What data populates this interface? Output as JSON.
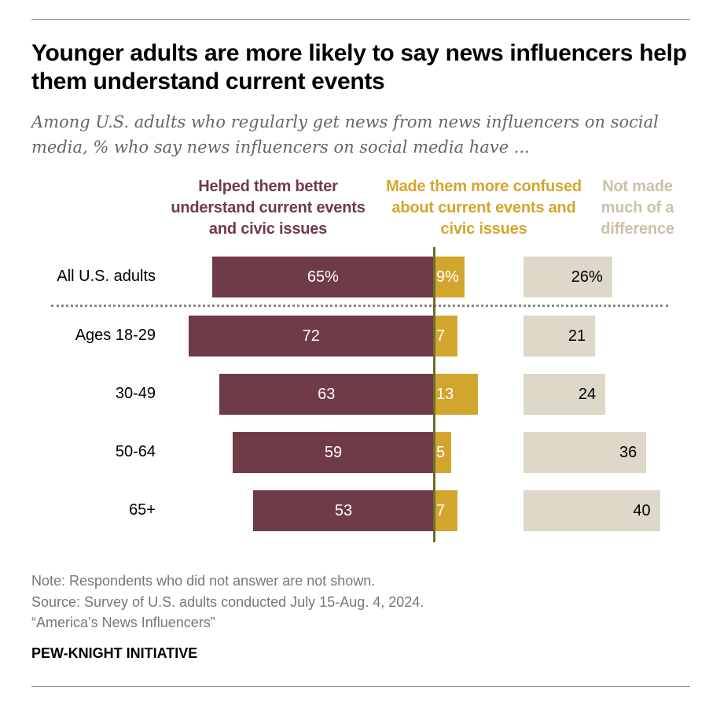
{
  "title": "Younger adults are more likely to say news influencers help them understand current events",
  "subtitle": "Among U.S. adults who regularly get news from news influencers on social media, % who say news influencers on social media have ...",
  "chart_data": {
    "type": "bar",
    "orientation": "horizontal-diverging",
    "categories": [
      "All U.S. adults",
      "Ages 18-29",
      "30-49",
      "50-64",
      "65+"
    ],
    "series": [
      {
        "name": "Helped them better understand current events and civic issues",
        "color": "#6f3b46",
        "values": [
          65,
          72,
          63,
          59,
          53
        ],
        "labels": [
          "65%",
          "72",
          "63",
          "59",
          "53"
        ]
      },
      {
        "name": "Made them more confused about current events and civic issues",
        "color": "#d2a62e",
        "values": [
          9,
          7,
          13,
          5,
          7
        ],
        "labels": [
          "9%",
          "7",
          "13",
          "5",
          "7"
        ]
      },
      {
        "name": "Not made much of a difference",
        "color": "#c9c1aa",
        "values": [
          26,
          21,
          24,
          36,
          40
        ],
        "labels": [
          "26%",
          "21",
          "24",
          "36",
          "40"
        ]
      }
    ],
    "unit": "%"
  },
  "notes": {
    "note": "Note: Respondents who did not answer are not shown.",
    "source": "Source: Survey of U.S. adults conducted July 15-Aug. 4, 2024.",
    "report": "“America’s News Influencers”"
  },
  "brand": "PEW-KNIGHT INITIATIVE"
}
